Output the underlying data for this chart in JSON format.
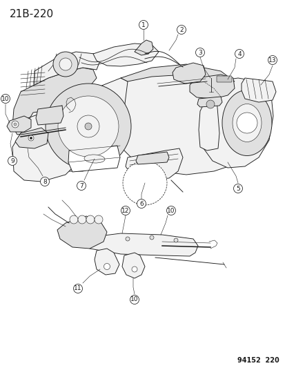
{
  "title": "21B-220",
  "footer": "94152  220",
  "bg_color": "#ffffff",
  "line_color": "#1a1a1a",
  "title_fontsize": 11,
  "footer_fontsize": 7,
  "callout_r": 6.5,
  "callout_fontsize": 6.5,
  "lw_main": 0.65,
  "lw_thick": 1.1,
  "lw_thin": 0.4,
  "gray_fill": "#f2f2f2",
  "gray_mid": "#e0e0e0",
  "gray_dark": "#c8c8c8",
  "white_fill": "#ffffff"
}
